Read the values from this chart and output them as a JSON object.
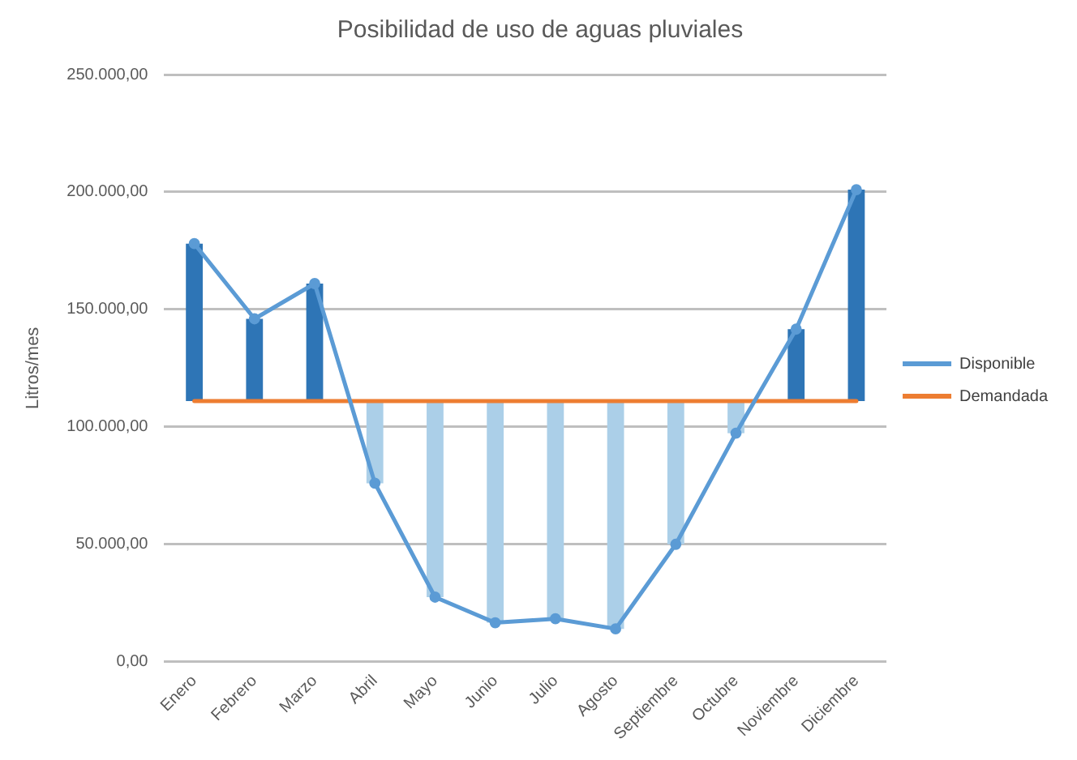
{
  "chart_data": {
    "type": "line",
    "title": "Posibilidad de uso de aguas pluviales",
    "ylabel": "Litros/mes",
    "categories": [
      "Enero",
      "Febrero",
      "Marzo",
      "Abril",
      "Mayo",
      "Junio",
      "Julio",
      "Agosto",
      "Septiembre",
      "Octubre",
      "Noviembre",
      "Diciembre"
    ],
    "series": [
      {
        "type": "bar",
        "base": [
          111000,
          111000,
          111000,
          111000,
          111000,
          111000,
          111000,
          111000,
          111000,
          111000,
          111000,
          111000
        ],
        "values": [
          67000,
          35000,
          50000,
          -35000,
          -83500,
          -94400,
          -92700,
          -97000,
          -61000,
          -13700,
          30600,
          90000
        ],
        "colors": [
          "#2e75b6",
          "#2e75b6",
          "#2e75b6",
          "#abcfe8",
          "#abcfe8",
          "#abcfe8",
          "#abcfe8",
          "#abcfe8",
          "#abcfe8",
          "#abcfe8",
          "#2e75b6",
          "#2e75b6"
        ]
      },
      {
        "name": "Disponible",
        "color": "#5b9bd5",
        "marker": "circle",
        "values": [
          178000,
          146000,
          161000,
          76000,
          27500,
          16600,
          18300,
          14000,
          50000,
          97300,
          141600,
          201000
        ]
      },
      {
        "name": "Demandada",
        "color": "#ed7d31",
        "marker": "none",
        "values": [
          111000,
          111000,
          111000,
          111000,
          111000,
          111000,
          111000,
          111000,
          111000,
          111000,
          111000,
          111000
        ]
      }
    ],
    "ylim": [
      0,
      250000
    ],
    "yticks": [
      {
        "value": 0,
        "label": "0,00"
      },
      {
        "value": 50000,
        "label": "50.000,00"
      },
      {
        "value": 100000,
        "label": "100.000,00"
      },
      {
        "value": 150000,
        "label": "150.000,00"
      },
      {
        "value": 200000,
        "label": "200.000,00"
      },
      {
        "value": 250000,
        "label": "250.000,00"
      }
    ],
    "grid": "y",
    "legend": "right",
    "line_style": "solid"
  }
}
